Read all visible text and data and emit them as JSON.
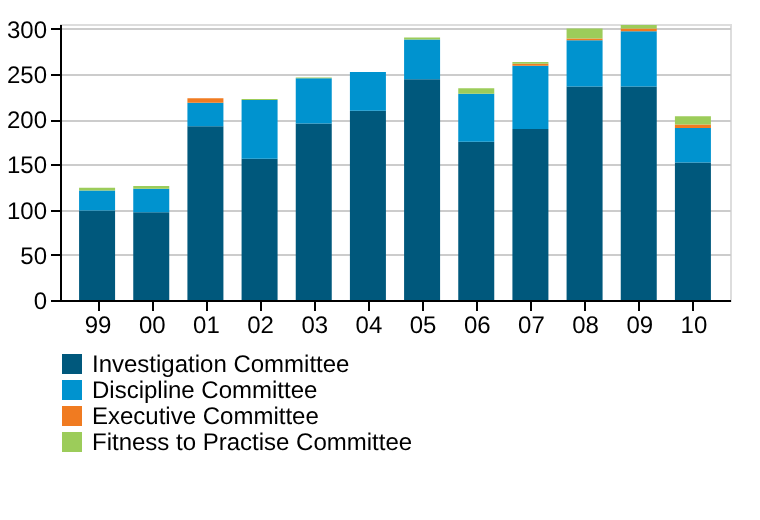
{
  "chart_data": {
    "type": "bar",
    "stacked": true,
    "categories": [
      "99",
      "00",
      "01",
      "02",
      "03",
      "04",
      "05",
      "06",
      "07",
      "08",
      "09",
      "10"
    ],
    "series": [
      {
        "name": "Investigation Committee",
        "color": "#00587c",
        "values": [
          99,
          97,
          192,
          156,
          195,
          209,
          244,
          175,
          189,
          236,
          236,
          152
        ]
      },
      {
        "name": "Discipline Committee",
        "color": "#0093cf",
        "values": [
          22,
          26,
          26,
          65,
          50,
          43,
          44,
          53,
          70,
          51,
          61,
          38
        ]
      },
      {
        "name": "Executive Committee",
        "color": "#f07b21",
        "values": [
          null,
          null,
          5,
          null,
          null,
          null,
          null,
          null,
          2,
          2,
          3,
          4
        ]
      },
      {
        "name": "Fitness to Practise Committee",
        "color": "#9ccc5a",
        "values": [
          3,
          3,
          null,
          1,
          1,
          null,
          2,
          6,
          2,
          11,
          4,
          9
        ]
      }
    ],
    "ylim": [
      0,
      305
    ],
    "yticks": [
      0,
      50,
      100,
      150,
      200,
      250,
      300
    ],
    "grid": "y",
    "legend": "bottom"
  }
}
